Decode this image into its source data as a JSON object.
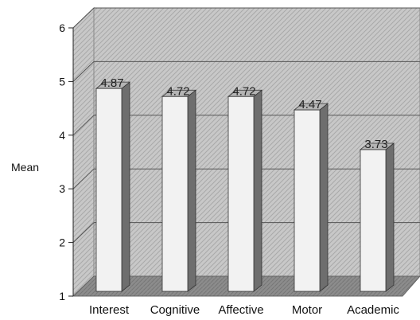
{
  "chart_data": {
    "type": "bar",
    "title": "",
    "xlabel": "",
    "ylabel": "Mean",
    "ylim": [
      1,
      6
    ],
    "yticks": [
      1,
      2,
      3,
      4,
      5,
      6
    ],
    "categories": [
      "Interest",
      "Cognitive",
      "Affective",
      "Motor",
      "Academic"
    ],
    "values": [
      4.87,
      4.72,
      4.72,
      4.47,
      3.73
    ],
    "data_labels": [
      "4.87",
      "4.72",
      "4.72",
      "4.47",
      "3.73"
    ],
    "grid": true,
    "three_d": true,
    "colors": {
      "bar_front": "#f2f2f2",
      "bar_side": "#6e6e6e",
      "bar_top": "#b4b4b4",
      "wall": "#c2c2c2",
      "floor": "#8a8a8a",
      "grid": "#555555"
    }
  }
}
